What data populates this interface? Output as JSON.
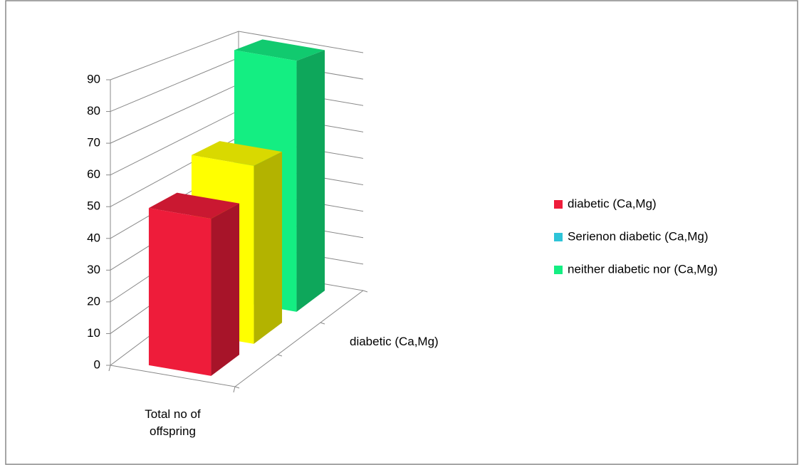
{
  "chart_data": {
    "type": "bar3d",
    "categories": [
      "Total no of offspring"
    ],
    "depth_label": "diabetic (Ca,Mg)",
    "series": [
      {
        "name": "diabetic (Ca,Mg)",
        "color": "#ee1c3a",
        "bar_color": "#ee1c3a",
        "values": [
          50
        ]
      },
      {
        "name": "Serienon diabetic (Ca,Mg)",
        "color": "#2ec4d8",
        "bar_color": "#ffff00",
        "values": [
          60
        ]
      },
      {
        "name": "neither diabetic nor (Ca,Mg)",
        "color": "#14ee82",
        "bar_color": "#14ee82",
        "values": [
          90
        ]
      }
    ],
    "ylim": [
      0,
      90
    ],
    "yticks": [
      0,
      10,
      20,
      30,
      40,
      50,
      60,
      70,
      80,
      90
    ],
    "grid": true,
    "legend": "right"
  }
}
